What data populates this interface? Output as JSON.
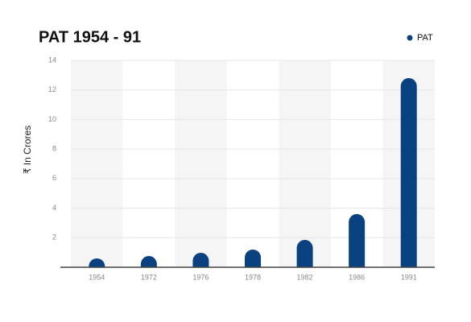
{
  "chart_data": {
    "type": "bar",
    "title": "PAT 1954 - 91",
    "ylabel": "₹ In Crores",
    "categories": [
      "1954",
      "1972",
      "1976",
      "1978",
      "1982",
      "1986",
      "1991"
    ],
    "series": [
      {
        "name": "PAT",
        "color": "#0a4281",
        "values": [
          0.6,
          0.76,
          0.98,
          1.2,
          1.85,
          3.6,
          12.8
        ]
      }
    ],
    "ylim": [
      0,
      14
    ],
    "yticks": [
      2,
      4,
      6,
      8,
      10,
      12,
      14
    ],
    "grid": true,
    "legend": "upper right"
  }
}
